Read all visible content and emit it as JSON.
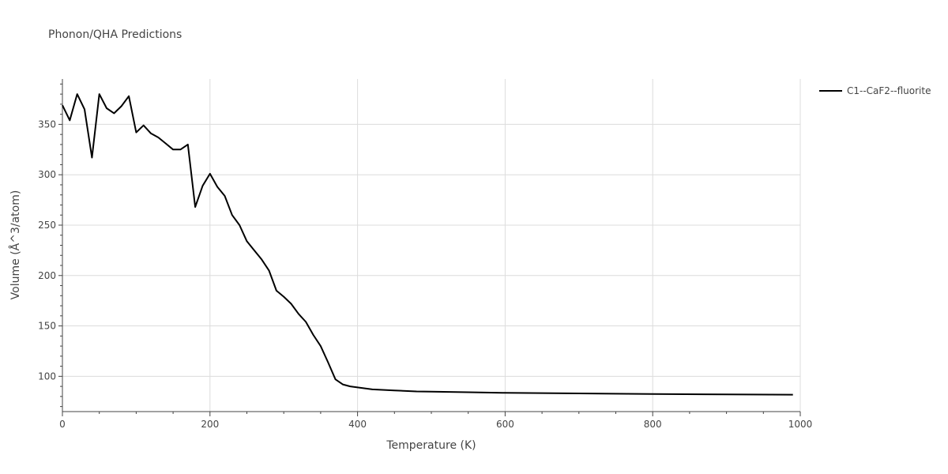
{
  "chart_data": {
    "type": "line",
    "title": "Phonon/QHA Predictions",
    "xlabel": "Temperature (K)",
    "ylabel": "Volume (Å^3/atom)",
    "xlim": [
      0,
      1000
    ],
    "ylim": [
      65,
      395
    ],
    "xticks": [
      0,
      200,
      400,
      600,
      800,
      1000
    ],
    "yticks": [
      100,
      150,
      200,
      250,
      300,
      350
    ],
    "grid": true,
    "legend_position": "top-right",
    "series": [
      {
        "name": "C1--CaF2--fluorite",
        "color": "#000000",
        "x": [
          0,
          10,
          20,
          30,
          40,
          50,
          60,
          70,
          80,
          90,
          100,
          110,
          120,
          130,
          140,
          150,
          160,
          170,
          180,
          190,
          200,
          210,
          220,
          230,
          240,
          250,
          260,
          270,
          280,
          290,
          300,
          310,
          320,
          330,
          340,
          350,
          360,
          370,
          380,
          390,
          400,
          420,
          450,
          480,
          500,
          550,
          600,
          700,
          800,
          900,
          990
        ],
        "y": [
          369,
          354,
          380,
          365,
          317,
          380,
          366,
          361,
          368,
          378,
          342,
          349,
          341,
          337,
          331,
          325,
          325,
          330,
          268,
          289,
          301,
          288,
          279,
          260,
          250,
          234,
          225,
          216,
          205,
          185,
          179,
          172,
          162,
          154,
          141,
          130,
          114,
          97,
          92,
          90,
          89,
          87,
          86,
          85,
          84.8,
          84.2,
          83.6,
          83,
          82.5,
          82,
          81.8
        ]
      }
    ]
  }
}
